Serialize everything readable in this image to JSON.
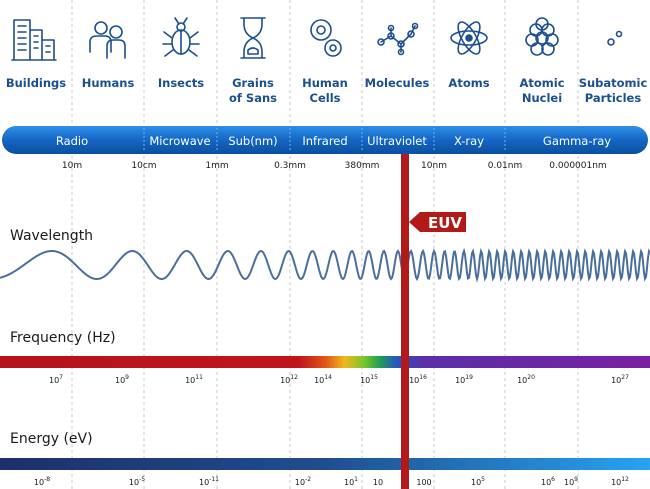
{
  "categories": [
    {
      "name": "building",
      "label_lines": [
        "Buildings"
      ],
      "icon": "building-icon"
    },
    {
      "name": "human",
      "label_lines": [
        "Humans"
      ],
      "icon": "humans-icon"
    },
    {
      "name": "insect",
      "label_lines": [
        "Insects"
      ],
      "icon": "insect-icon"
    },
    {
      "name": "grain",
      "label_lines": [
        "Grains",
        "of Sans"
      ],
      "icon": "hourglass-icon"
    },
    {
      "name": "cell",
      "label_lines": [
        "Human",
        "Cells"
      ],
      "icon": "cells-icon"
    },
    {
      "name": "molecule",
      "label_lines": [
        "Molecules"
      ],
      "icon": "molecule-icon"
    },
    {
      "name": "atom",
      "label_lines": [
        "Atoms"
      ],
      "icon": "atom-icon"
    },
    {
      "name": "nucleus",
      "label_lines": [
        "Atomic",
        "Nuclei"
      ],
      "icon": "nucleus-icon"
    },
    {
      "name": "subatomic",
      "label_lines": [
        "Subatomic",
        "Particles"
      ],
      "icon": "particle-icon"
    }
  ],
  "bands": [
    "Radio",
    "Microwave",
    "Sub(nm)",
    "Infrared",
    "Ultraviolet",
    "X-ray",
    "Gamma-ray"
  ],
  "wavelengths": [
    "10m",
    "10cm",
    "1mm",
    "0.3mm",
    "380mm",
    "10nm",
    "0.01nm",
    "0.000001nm"
  ],
  "sections": {
    "wavelength": "Wavelength",
    "frequency": "Frequency (Hz)",
    "energy": "Energy (eV)"
  },
  "euv_label": "EUV",
  "frequency_ticks": [
    {
      "base": "10",
      "exp": "7"
    },
    {
      "base": "10",
      "exp": "9"
    },
    {
      "base": "10",
      "exp": "11"
    },
    {
      "base": "10",
      "exp": "12"
    },
    {
      "base": "10",
      "exp": "14"
    },
    {
      "base": "10",
      "exp": "15"
    },
    {
      "base": "10",
      "exp": "16"
    },
    {
      "base": "10",
      "exp": "19"
    },
    {
      "base": "10",
      "exp": "20"
    },
    {
      "base": "10",
      "exp": "27"
    }
  ],
  "energy_ticks": [
    {
      "base": "10",
      "exp": "-8"
    },
    {
      "base": "10",
      "exp": "-5"
    },
    {
      "base": "10",
      "exp": "-11"
    },
    {
      "base": "10",
      "exp": "-2"
    },
    {
      "base": "10",
      "exp": "1"
    },
    {
      "base": "10",
      "exp": ""
    },
    {
      "base": "100",
      "exp": ""
    },
    {
      "base": "10",
      "exp": "5"
    },
    {
      "base": "10",
      "exp": "6"
    },
    {
      "base": "10",
      "exp": "9"
    },
    {
      "base": "10",
      "exp": "12"
    }
  ],
  "colors": {
    "icon": "#1b4f8f",
    "band_dark": "#0a4f9e",
    "band_light": "#2f8fe6",
    "euv": "#b21a1a",
    "wave": "#4a6f9c",
    "frequency_start": "#b5121b",
    "frequency_end": "#7a1fa2",
    "energy_start": "#1d2f6b",
    "energy_end": "#27a3f2"
  }
}
